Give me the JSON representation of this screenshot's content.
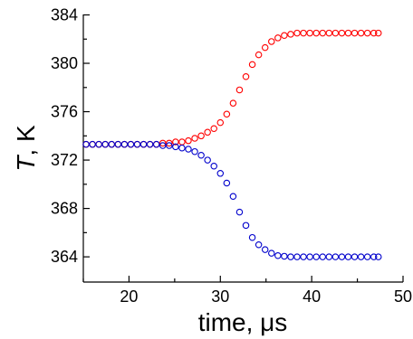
{
  "chart_data": {
    "type": "scatter",
    "xlabel": "time, μs",
    "ylabel": {
      "symbol": "T",
      "rest": ", K"
    },
    "xlim": [
      15,
      50
    ],
    "ylim": [
      363,
      384
    ],
    "x_ticks": [
      20,
      30,
      40,
      50
    ],
    "x_minor_ticks": [
      15,
      25,
      35,
      45
    ],
    "y_ticks": [
      364,
      368,
      372,
      376,
      380,
      384
    ],
    "y_minor_ticks": [
      366,
      370,
      374,
      378,
      382
    ],
    "grid": false,
    "series": [
      {
        "color": "#ff0000",
        "points": [
          [
            15.3,
            373.3
          ],
          [
            16.0,
            373.3
          ],
          [
            16.7,
            373.3
          ],
          [
            17.4,
            373.3
          ],
          [
            18.1,
            373.3
          ],
          [
            18.8,
            373.3
          ],
          [
            19.5,
            373.3
          ],
          [
            20.2,
            373.3
          ],
          [
            20.9,
            373.3
          ],
          [
            21.6,
            373.3
          ],
          [
            22.3,
            373.3
          ],
          [
            23.0,
            373.3
          ],
          [
            23.7,
            373.4
          ],
          [
            24.4,
            373.4
          ],
          [
            25.1,
            373.5
          ],
          [
            25.8,
            373.5
          ],
          [
            26.5,
            373.6
          ],
          [
            27.2,
            373.8
          ],
          [
            27.9,
            374.0
          ],
          [
            28.6,
            374.3
          ],
          [
            29.3,
            374.6
          ],
          [
            30.0,
            375.1
          ],
          [
            30.7,
            375.8
          ],
          [
            31.4,
            376.7
          ],
          [
            32.1,
            377.8
          ],
          [
            32.8,
            378.9
          ],
          [
            33.5,
            379.9
          ],
          [
            34.2,
            380.7
          ],
          [
            34.9,
            381.3
          ],
          [
            35.6,
            381.8
          ],
          [
            36.3,
            382.1
          ],
          [
            37.0,
            382.3
          ],
          [
            37.7,
            382.4
          ],
          [
            38.4,
            382.5
          ],
          [
            39.1,
            382.5
          ],
          [
            39.8,
            382.5
          ],
          [
            40.5,
            382.5
          ],
          [
            41.2,
            382.5
          ],
          [
            41.9,
            382.5
          ],
          [
            42.6,
            382.5
          ],
          [
            43.3,
            382.5
          ],
          [
            44.0,
            382.5
          ],
          [
            44.7,
            382.5
          ],
          [
            45.4,
            382.5
          ],
          [
            46.1,
            382.5
          ],
          [
            46.8,
            382.5
          ],
          [
            47.3,
            382.5
          ]
        ]
      },
      {
        "color": "#0000cc",
        "points": [
          [
            15.3,
            373.3
          ],
          [
            16.0,
            373.3
          ],
          [
            16.7,
            373.3
          ],
          [
            17.4,
            373.3
          ],
          [
            18.1,
            373.3
          ],
          [
            18.8,
            373.3
          ],
          [
            19.5,
            373.3
          ],
          [
            20.2,
            373.3
          ],
          [
            20.9,
            373.3
          ],
          [
            21.6,
            373.3
          ],
          [
            22.3,
            373.3
          ],
          [
            23.0,
            373.3
          ],
          [
            23.7,
            373.2
          ],
          [
            24.4,
            373.2
          ],
          [
            25.1,
            373.1
          ],
          [
            25.8,
            373.0
          ],
          [
            26.5,
            372.9
          ],
          [
            27.2,
            372.7
          ],
          [
            27.9,
            372.4
          ],
          [
            28.6,
            372.0
          ],
          [
            29.3,
            371.5
          ],
          [
            30.0,
            370.9
          ],
          [
            30.7,
            370.1
          ],
          [
            31.4,
            369.0
          ],
          [
            32.1,
            367.7
          ],
          [
            32.8,
            366.6
          ],
          [
            33.5,
            365.6
          ],
          [
            34.2,
            365.0
          ],
          [
            34.9,
            364.6
          ],
          [
            35.6,
            364.3
          ],
          [
            36.3,
            364.1
          ],
          [
            37.0,
            364.05
          ],
          [
            37.7,
            364.0
          ],
          [
            38.4,
            364.0
          ],
          [
            39.1,
            364.0
          ],
          [
            39.8,
            364.0
          ],
          [
            40.5,
            364.0
          ],
          [
            41.2,
            364.0
          ],
          [
            41.9,
            364.0
          ],
          [
            42.6,
            364.0
          ],
          [
            43.3,
            364.0
          ],
          [
            44.0,
            364.0
          ],
          [
            44.7,
            364.0
          ],
          [
            45.4,
            364.0
          ],
          [
            46.1,
            364.0
          ],
          [
            46.8,
            364.0
          ],
          [
            47.3,
            364.0
          ]
        ]
      }
    ]
  }
}
